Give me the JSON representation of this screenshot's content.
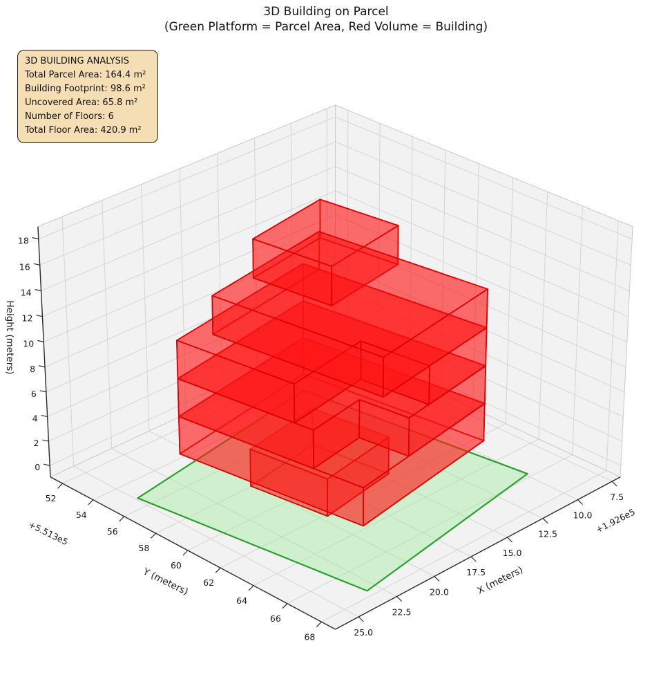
{
  "title": {
    "line1": "3D Building on Parcel",
    "line2": "(Green Platform = Parcel Area, Red Volume = Building)"
  },
  "info_box": {
    "title": "3D BUILDING ANALYSIS",
    "lines": [
      "Total Parcel Area: 164.4 m²",
      "Building Footprint: 98.6 m²",
      "Uncovered Area: 65.8 m²",
      "Number of Floors: 6",
      "Total Floor Area: 420.9 m²"
    ],
    "bg_color": "#f5deb3",
    "border_color": "#1a1a1a"
  },
  "chart_data": {
    "type": "3d-building-plot",
    "title": "3D Building on Parcel\n(Green Platform = Parcel Area, Red Volume = Building)",
    "view": {
      "elev_deg": 30,
      "azim_deg": 45,
      "projection": "persp",
      "dist": 10
    },
    "axes": {
      "x": {
        "label": "X (meters)",
        "lim": [
          6.9,
          26.5
        ],
        "ticks": [
          7.5,
          10.0,
          12.5,
          15.0,
          17.5,
          20.0,
          22.5,
          25.0
        ],
        "tick_labels": [
          "7.5",
          "10.0",
          "12.5",
          "15.0",
          "17.5",
          "20.0",
          "22.5",
          "25.0"
        ],
        "offset_text": "+1.926e5"
      },
      "y": {
        "label": "Y (meters)",
        "lim": [
          51.2,
          68.8
        ],
        "ticks": [
          52,
          54,
          56,
          58,
          60,
          62,
          64,
          66,
          68
        ],
        "tick_labels": [
          "52",
          "54",
          "56",
          "58",
          "60",
          "62",
          "64",
          "66",
          "68"
        ],
        "offset_text": "+5.513e5"
      },
      "z": {
        "label": "Height (meters)",
        "lim": [
          -0.95,
          18.95
        ],
        "ticks": [
          0,
          2,
          4,
          6,
          8,
          10,
          12,
          14,
          16,
          18
        ],
        "tick_labels": [
          "0",
          "2",
          "4",
          "6",
          "8",
          "10",
          "12",
          "14",
          "16",
          "18"
        ],
        "offset_text": ""
      }
    },
    "stats": {
      "total_parcel_area_m2": 164.4,
      "building_footprint_m2": 98.6,
      "uncovered_area_m2": 65.8,
      "number_of_floors": 6,
      "total_floor_area_m2": 420.9
    },
    "parcel": {
      "z": 0,
      "polygon": [
        [
          25.6,
          56.0
        ],
        [
          12.43,
          54.14
        ],
        [
          10.7,
          66.41
        ],
        [
          23.86,
          68.28
        ]
      ],
      "fill": "#90ee90",
      "fill_opacity": 0.35,
      "edge": "#2ba02b",
      "edge_width": 2.2
    },
    "building": {
      "face_fill": "#ff1616",
      "face_opacity": 0.38,
      "edge": "#dd0000",
      "edge_width": 1.7,
      "floor_height_m": 3,
      "floors": [
        {
          "name": "floor-1",
          "z0": 0,
          "z1": 3,
          "footprint": [
            [
              20.98,
              58.68
            ],
            [
              16.03,
              57.98
            ],
            [
              15.44,
              62.14
            ],
            [
              20.39,
              62.84
            ]
          ]
        },
        {
          "name": "floor-2",
          "z0": 3,
          "z1": 6,
          "footprint": [
            [
              23.66,
              56.84
            ],
            [
              13.86,
              55.45
            ],
            [
              12.48,
              65.25
            ],
            [
              22.28,
              66.64
            ]
          ]
        },
        {
          "name": "floor-3",
          "z0": 6,
          "z1": 9,
          "footprint": [
            [
              23.66,
              56.84
            ],
            [
              13.86,
              55.45
            ],
            [
              12.48,
              65.25
            ],
            [
              18.71,
              66.13
            ],
            [
              19.08,
              63.56
            ],
            [
              22.64,
              64.06
            ]
          ]
        },
        {
          "name": "floor-4",
          "z0": 9,
          "z1": 12,
          "footprint": [
            [
              23.66,
              56.84
            ],
            [
              13.86,
              55.45
            ],
            [
              12.48,
              65.25
            ],
            [
              17.13,
              65.91
            ],
            [
              17.63,
              62.35
            ],
            [
              22.78,
              63.07
            ]
          ]
        },
        {
          "name": "floor-5",
          "z0": 12,
          "z1": 15,
          "footprint": [
            [
              22.05,
              57.52
            ],
            [
              13.74,
              56.34
            ],
            [
              12.48,
              65.25
            ],
            [
              20.79,
              66.43
            ]
          ]
        },
        {
          "name": "floor-6",
          "z0": 15,
          "z1": 18,
          "footprint": [
            [
              19.42,
              57.55
            ],
            [
              14.18,
              56.81
            ],
            [
              13.59,
              60.97
            ],
            [
              18.84,
              61.71
            ]
          ]
        }
      ]
    },
    "style": {
      "pane_fill": "#f2f2f2",
      "pane_edge": "#c9c9c9",
      "grid_color": "#d4d4d4",
      "axis_color": "#2b2b2b",
      "tick_text_color": "#1a1a1a",
      "grid_on": true
    }
  }
}
